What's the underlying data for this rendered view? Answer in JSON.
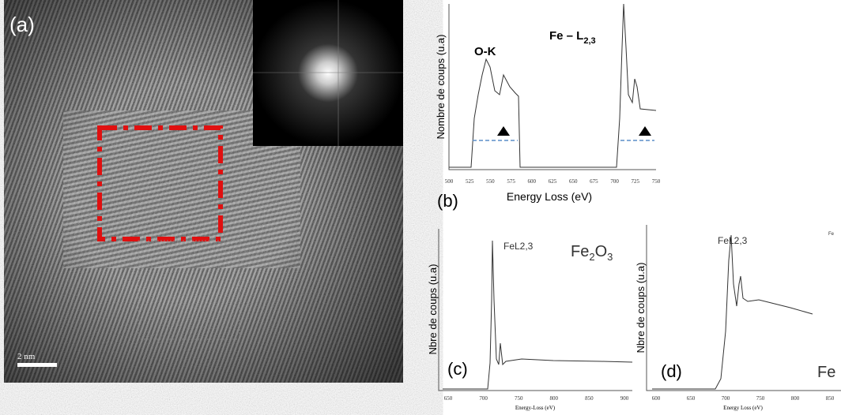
{
  "panels": [
    {
      "label": "(a)",
      "scale_bar": "2 nm"
    },
    {
      "label": "(b)",
      "ylabel": "Nombre de coups (u.a)",
      "xlabel": "Energy Loss (eV)",
      "xticks": [
        "500",
        "525",
        "550",
        "575",
        "600",
        "625",
        "650",
        "675",
        "700",
        "725",
        "750"
      ],
      "annotations": {
        "ok": "O-K",
        "fe": "Fe – L",
        "fe_sub": "2,3"
      }
    },
    {
      "label": "(c)",
      "ylabel": "Nbre de coups (u.a)",
      "xlabel": "Energy-Loss (eV)",
      "xticks": [
        "650",
        "700",
        "750",
        "800",
        "850",
        "900"
      ],
      "edge": "FeL2,3",
      "compound": [
        "Fe",
        "2",
        "O",
        "3"
      ]
    },
    {
      "label": "(d)",
      "ylabel": "Nbre de coups (u.a)",
      "xlabel": "Energy Loss (eV)",
      "xticks": [
        "600",
        "650",
        "700",
        "750",
        "800",
        "850"
      ],
      "edge": "FeL2,3",
      "compound": "Fe",
      "corner": "Fe"
    }
  ]
}
